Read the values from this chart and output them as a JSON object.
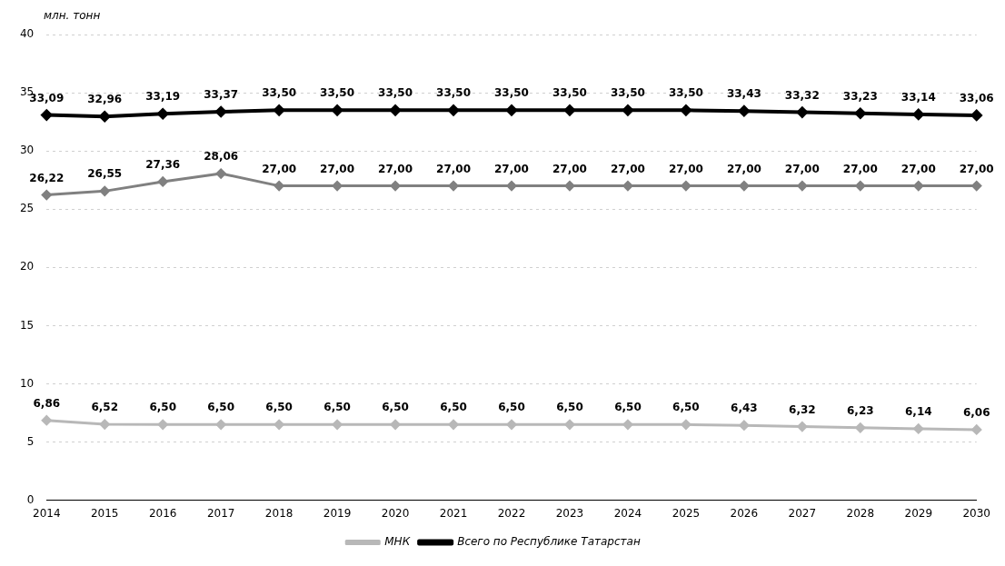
{
  "chart_data": {
    "type": "line",
    "ylabel": "млн. тонн",
    "categories": [
      "2014",
      "2015",
      "2016",
      "2017",
      "2018",
      "2019",
      "2020",
      "2021",
      "2022",
      "2023",
      "2024",
      "2025",
      "2026",
      "2027",
      "2028",
      "2029",
      "2030"
    ],
    "series": [
      {
        "color": "#808080",
        "values": [
          26.22,
          26.55,
          27.36,
          28.06,
          27.0,
          27.0,
          27.0,
          27.0,
          27.0,
          27.0,
          27.0,
          27.0,
          27.0,
          27.0,
          27.0,
          27.0,
          27.0
        ],
        "value_labels": [
          "26,22",
          "26,55",
          "27,36",
          "28,06",
          "27,00",
          "27,00",
          "27,00",
          "27,00",
          "27,00",
          "27,00",
          "27,00",
          "27,00",
          "27,00",
          "27,00",
          "27,00",
          "27,00",
          "27,00"
        ]
      },
      {
        "name": "МНК",
        "color": "#b8b8b8",
        "values": [
          6.86,
          6.52,
          6.5,
          6.5,
          6.5,
          6.5,
          6.5,
          6.5,
          6.5,
          6.5,
          6.5,
          6.5,
          6.43,
          6.32,
          6.23,
          6.14,
          6.06
        ],
        "value_labels": [
          "6,86",
          "6,52",
          "6,50",
          "6,50",
          "6,50",
          "6,50",
          "6,50",
          "6,50",
          "6,50",
          "6,50",
          "6,50",
          "6,50",
          "6,43",
          "6,32",
          "6,23",
          "6,14",
          "6,06"
        ]
      },
      {
        "name": "Всего по Республике Татарстан",
        "color": "#000000",
        "values": [
          33.09,
          32.96,
          33.19,
          33.37,
          33.5,
          33.5,
          33.5,
          33.5,
          33.5,
          33.5,
          33.5,
          33.5,
          33.43,
          33.32,
          33.23,
          33.14,
          33.06
        ],
        "value_labels": [
          "33,09",
          "32,96",
          "33,19",
          "33,37",
          "33,50",
          "33,50",
          "33,50",
          "33,50",
          "33,50",
          "33,50",
          "33,50",
          "33,50",
          "33,43",
          "33,32",
          "33,23",
          "33,14",
          "33,06"
        ]
      }
    ],
    "ylim": [
      0,
      40
    ],
    "yticks": [
      0,
      5,
      10,
      15,
      20,
      25,
      30,
      35,
      40
    ],
    "grid": "y",
    "legend": "bottom",
    "marker": "diamond",
    "line_style": "solid"
  }
}
